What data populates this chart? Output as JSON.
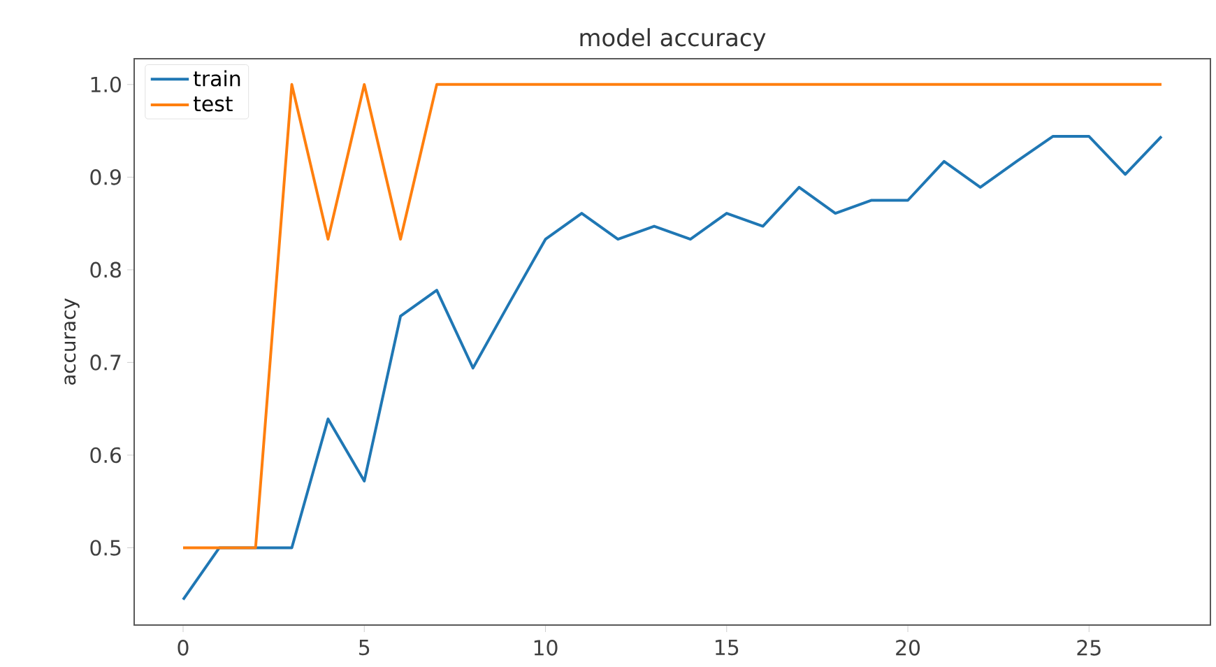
{
  "chart_data": {
    "type": "line",
    "title": "model accuracy",
    "ylabel": "accuracy",
    "x": [
      0,
      1,
      2,
      3,
      4,
      5,
      6,
      7,
      8,
      9,
      10,
      11,
      12,
      13,
      14,
      15,
      16,
      17,
      18,
      19,
      20,
      21,
      22,
      23,
      24,
      25,
      26,
      27
    ],
    "series": [
      {
        "name": "train",
        "color": "#1f77b4",
        "values": [
          0.444,
          0.5,
          0.5,
          0.5,
          0.639,
          0.572,
          0.75,
          0.778,
          0.694,
          0.764,
          0.833,
          0.861,
          0.833,
          0.847,
          0.833,
          0.861,
          0.847,
          0.889,
          0.861,
          0.875,
          0.875,
          0.917,
          0.889,
          0.917,
          0.944,
          0.944,
          0.903,
          0.944
        ]
      },
      {
        "name": "test",
        "color": "#ff7f0e",
        "values": [
          0.5,
          0.5,
          0.5,
          1.0,
          0.833,
          1.0,
          0.833,
          1.0,
          1.0,
          1.0,
          1.0,
          1.0,
          1.0,
          1.0,
          1.0,
          1.0,
          1.0,
          1.0,
          1.0,
          1.0,
          1.0,
          1.0,
          1.0,
          1.0,
          1.0,
          1.0,
          1.0,
          1.0
        ]
      }
    ],
    "xlim": [
      -1.35,
      28.35
    ],
    "ylim": [
      0.4166,
      1.0278
    ],
    "xticks": [
      0,
      5,
      10,
      15,
      20,
      25
    ],
    "yticks": [
      0.5,
      0.6,
      0.7,
      0.8,
      0.9,
      {
        "value": 1.0,
        "label": "1.0"
      }
    ],
    "legend": "top left",
    "grid": false,
    "marker": "none",
    "line_style": "solid"
  }
}
